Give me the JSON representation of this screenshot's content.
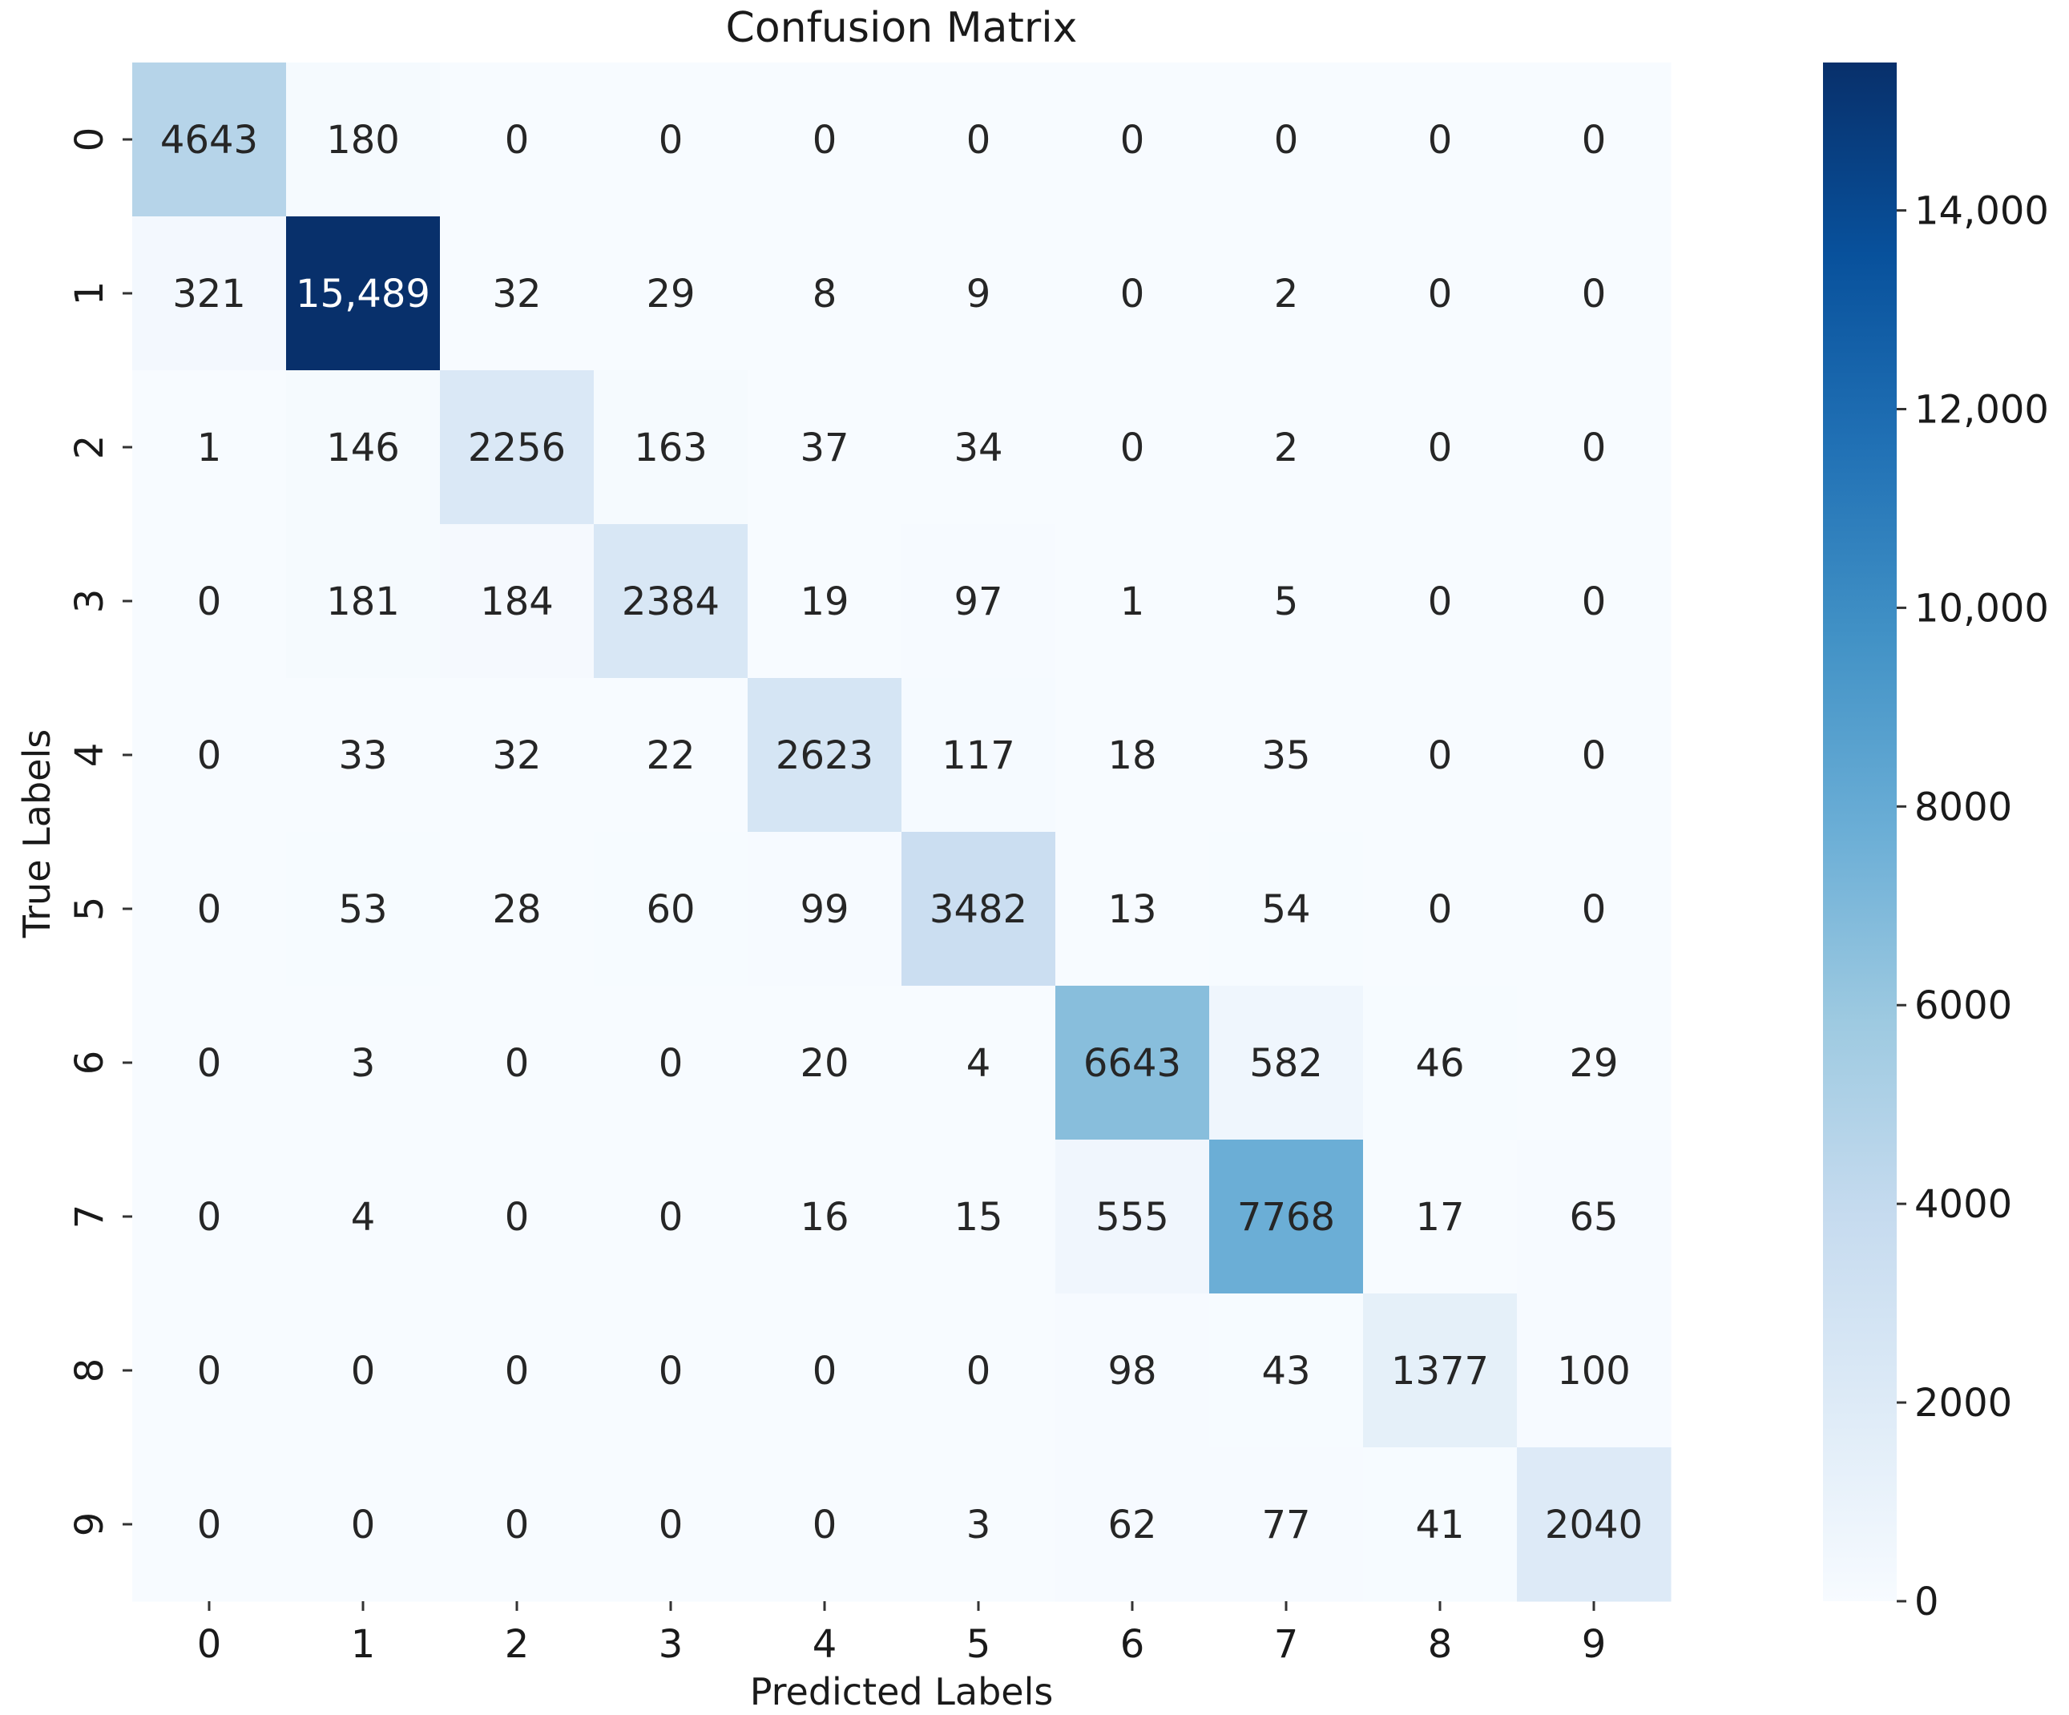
{
  "chart_data": {
    "type": "heatmap",
    "title": "Confusion Matrix",
    "xlabel": "Predicted Labels",
    "ylabel": "True Labels",
    "x_categories": [
      "0",
      "1",
      "2",
      "3",
      "4",
      "5",
      "6",
      "7",
      "8",
      "9"
    ],
    "y_categories": [
      "0",
      "1",
      "2",
      "3",
      "4",
      "5",
      "6",
      "7",
      "8",
      "9"
    ],
    "values": [
      [
        4643,
        180,
        0,
        0,
        0,
        0,
        0,
        0,
        0,
        0
      ],
      [
        321,
        15489,
        32,
        29,
        8,
        9,
        0,
        2,
        0,
        0
      ],
      [
        1,
        146,
        2256,
        163,
        37,
        34,
        0,
        2,
        0,
        0
      ],
      [
        0,
        181,
        184,
        2384,
        19,
        97,
        1,
        5,
        0,
        0
      ],
      [
        0,
        33,
        32,
        22,
        2623,
        117,
        18,
        35,
        0,
        0
      ],
      [
        0,
        53,
        28,
        60,
        99,
        3482,
        13,
        54,
        0,
        0
      ],
      [
        0,
        3,
        0,
        0,
        20,
        4,
        6643,
        582,
        46,
        29
      ],
      [
        0,
        4,
        0,
        0,
        16,
        15,
        555,
        7768,
        17,
        65
      ],
      [
        0,
        0,
        0,
        0,
        0,
        0,
        98,
        43,
        1377,
        100
      ],
      [
        0,
        0,
        0,
        0,
        0,
        3,
        62,
        77,
        41,
        2040
      ]
    ],
    "value_labels": [
      [
        "4643",
        "180",
        "0",
        "0",
        "0",
        "0",
        "0",
        "0",
        "0",
        "0"
      ],
      [
        "321",
        "15,489",
        "32",
        "29",
        "8",
        "9",
        "0",
        "2",
        "0",
        "0"
      ],
      [
        "1",
        "146",
        "2256",
        "163",
        "37",
        "34",
        "0",
        "2",
        "0",
        "0"
      ],
      [
        "0",
        "181",
        "184",
        "2384",
        "19",
        "97",
        "1",
        "5",
        "0",
        "0"
      ],
      [
        "0",
        "33",
        "32",
        "22",
        "2623",
        "117",
        "18",
        "35",
        "0",
        "0"
      ],
      [
        "0",
        "53",
        "28",
        "60",
        "99",
        "3482",
        "13",
        "54",
        "0",
        "0"
      ],
      [
        "0",
        "3",
        "0",
        "0",
        "20",
        "4",
        "6643",
        "582",
        "46",
        "29"
      ],
      [
        "0",
        "4",
        "0",
        "0",
        "16",
        "15",
        "555",
        "7768",
        "17",
        "65"
      ],
      [
        "0",
        "0",
        "0",
        "0",
        "0",
        "0",
        "98",
        "43",
        "1377",
        "100"
      ],
      [
        "0",
        "0",
        "0",
        "0",
        "0",
        "3",
        "62",
        "77",
        "41",
        "2040"
      ]
    ],
    "colormap": "Blues",
    "color_range": [
      0,
      15489
    ],
    "colorbar": {
      "ticks": [
        0,
        2000,
        4000,
        6000,
        8000,
        10000,
        12000,
        14000
      ],
      "tick_labels": [
        "0",
        "2000",
        "4000",
        "6000",
        "8000",
        "10,000",
        "12,000",
        "14,000"
      ]
    }
  }
}
